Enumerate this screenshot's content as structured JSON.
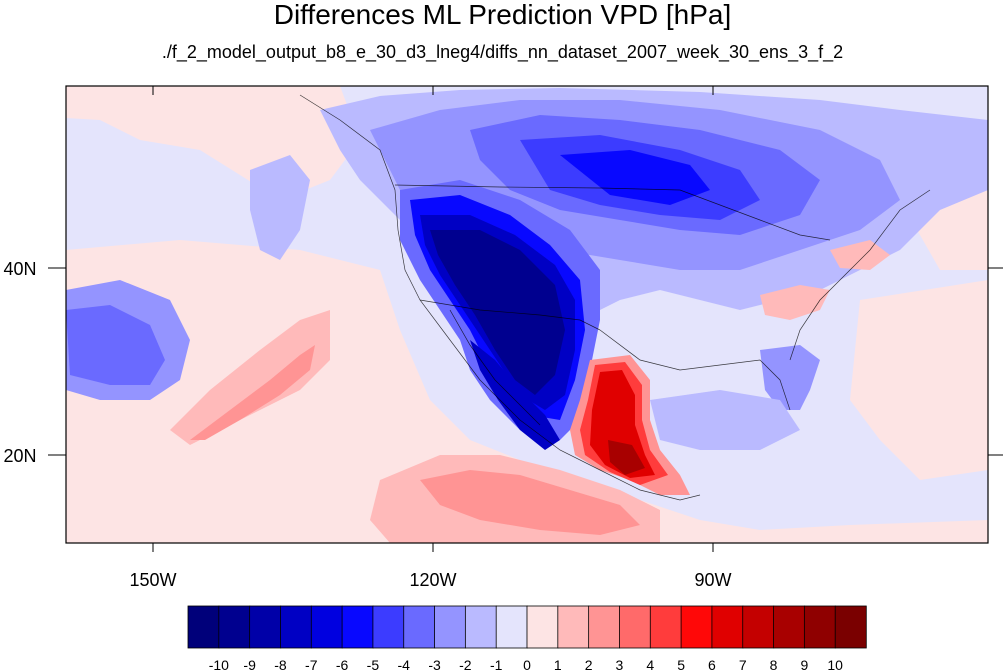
{
  "title": "Differences ML Prediction VPD [hPa]",
  "subtitle": "./f_2_model_output_b8_e_30_d3_lneg4/diffs_nn_dataset_2007_week_30_ens_3_f_2",
  "lat_labels": [
    "40N",
    "20N"
  ],
  "lon_labels": [
    "150W",
    "120W",
    "90W"
  ],
  "colorbar": {
    "labels": [
      "-10",
      "-9",
      "-8",
      "-7",
      "-6",
      "-5",
      "-4",
      "-3",
      "-2",
      "-1",
      "0",
      "1",
      "2",
      "3",
      "4",
      "5",
      "6",
      "7",
      "8",
      "9",
      "10"
    ],
    "colors": [
      "#00007a",
      "#00008f",
      "#0000a8",
      "#0000c4",
      "#0000e0",
      "#0808ff",
      "#3c3cff",
      "#6a6aff",
      "#9494ff",
      "#babaff",
      "#e4e4fc",
      "#fde4e4",
      "#ffbaba",
      "#ff9494",
      "#ff6a6a",
      "#ff3c3c",
      "#ff0808",
      "#e00000",
      "#c40000",
      "#a80000",
      "#8f0000",
      "#7a0000"
    ]
  },
  "map": {
    "background_value": "slightly negative",
    "features": [
      "strong negative anomaly over western US and Baja",
      "strong positive anomaly over central and southern Mexico",
      "negative anomaly over Canada and northern US",
      "positive anomaly band in subtropical Pacific"
    ]
  }
}
